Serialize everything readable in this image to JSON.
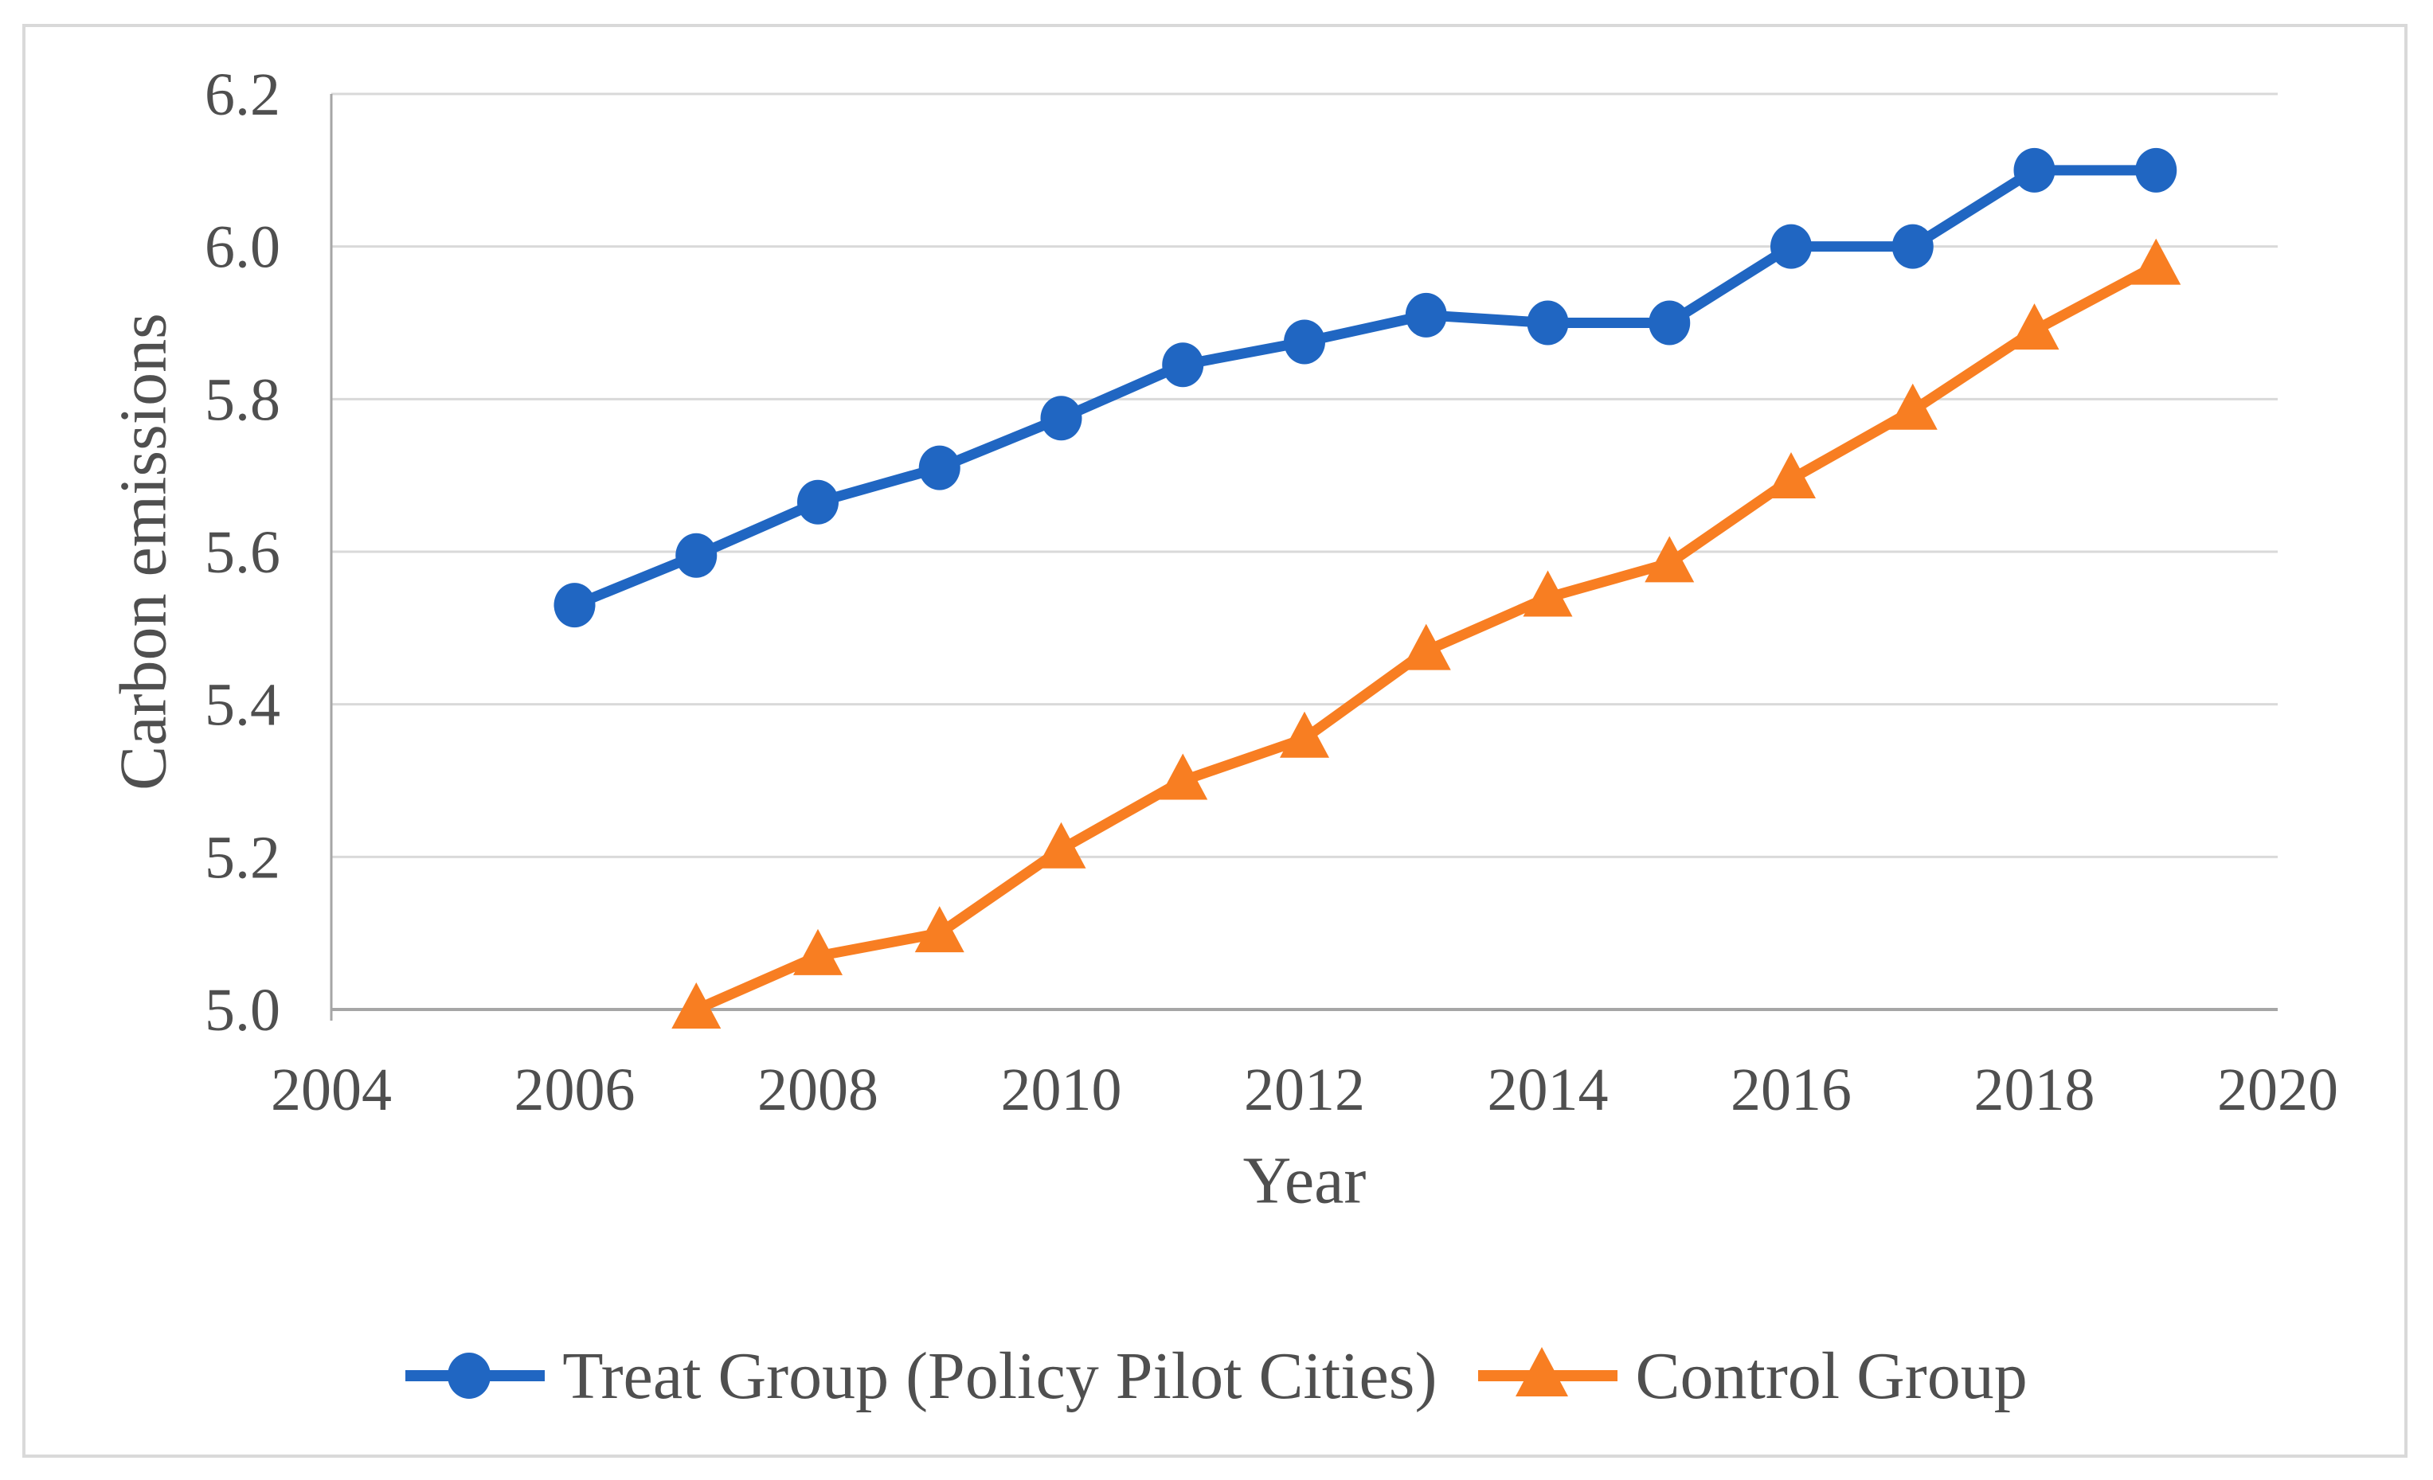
{
  "figure": {
    "background_color": "#ffffff",
    "border_color": "#d9d9d9"
  },
  "chart_data": {
    "type": "line",
    "title": "",
    "xlabel": "Year",
    "ylabel": "Carbon emissions",
    "xlim": [
      2004,
      2020
    ],
    "ylim": [
      5.0,
      6.2
    ],
    "x_ticks": [
      2004,
      2006,
      2008,
      2010,
      2012,
      2014,
      2016,
      2018,
      2020
    ],
    "y_ticks": [
      5.0,
      5.2,
      5.4,
      5.6,
      5.8,
      6.0,
      6.2
    ],
    "y_tick_decimals": 1,
    "grid": "horizontal",
    "legend_position": "bottom-center",
    "colors": {
      "grid": "#d9d9d9",
      "axis": "#a6a6a6",
      "text": "#4f4f4f"
    },
    "series": [
      {
        "name": "Treat Group (Policy Pilot Cities)",
        "color": "#2066c2",
        "marker": "circle",
        "x": [
          2006,
          2007,
          2008,
          2009,
          2010,
          2011,
          2012,
          2013,
          2014,
          2015,
          2016,
          2017,
          2018,
          2019
        ],
        "values": [
          5.53,
          5.595,
          5.665,
          5.71,
          5.775,
          5.845,
          5.875,
          5.91,
          5.9,
          5.9,
          6.0,
          6.0,
          6.1,
          6.1
        ]
      },
      {
        "name": "Control Group",
        "color": "#f87e22",
        "marker": "triangle",
        "x": [
          2007,
          2008,
          2009,
          2010,
          2011,
          2012,
          2013,
          2014,
          2015,
          2016,
          2017,
          2018,
          2019
        ],
        "values": [
          5.0,
          5.07,
          5.1,
          5.21,
          5.3,
          5.355,
          5.47,
          5.54,
          5.585,
          5.695,
          5.785,
          5.89,
          5.975
        ]
      }
    ]
  }
}
